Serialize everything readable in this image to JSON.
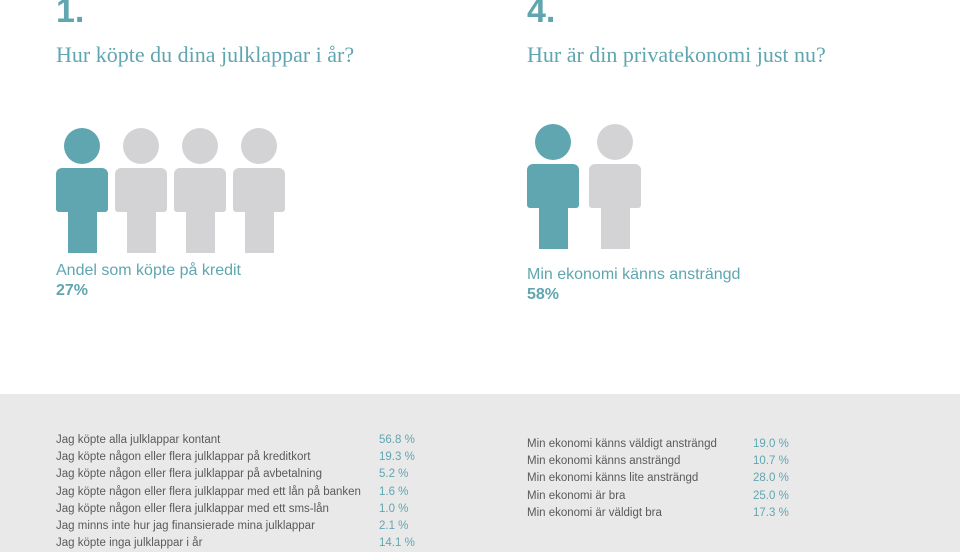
{
  "colors": {
    "accent": "#5fa6b0",
    "inactive": "#d3d3d5",
    "band": "#e9e9ea"
  },
  "left": {
    "number": "1.",
    "question": "Hur köpte du dina julklappar i år?",
    "figures": {
      "count": 4,
      "highlighted": 1
    },
    "caption": "Andel som köpte på kredit",
    "stat": "27%",
    "rows": [
      {
        "label": "Jag köpte alla julklappar kontant",
        "value": "56.8 %"
      },
      {
        "label": "Jag köpte någon eller flera julklappar på kreditkort",
        "value": "19.3 %"
      },
      {
        "label": "Jag köpte någon eller flera julklappar på avbetalning",
        "value": "5.2 %"
      },
      {
        "label": "Jag köpte någon eller flera julklappar med ett lån på banken",
        "value": "1.6 %"
      },
      {
        "label": "Jag köpte någon eller flera julklappar med ett sms-lån",
        "value": "1.0 %"
      },
      {
        "label": "Jag minns inte hur jag finansierade mina julklappar",
        "value": "2.1 %"
      },
      {
        "label": "Jag köpte inga julklappar i år",
        "value": "14.1 %"
      }
    ]
  },
  "right": {
    "number": "4.",
    "question": "Hur är din privatekonomi just nu?",
    "figures": {
      "count": 2,
      "highlighted": 1
    },
    "caption": "Min ekonomi känns ansträngd",
    "stat": "58%",
    "rows": [
      {
        "label": "Min ekonomi känns väldigt ansträngd",
        "value": "19.0 %"
      },
      {
        "label": "Min ekonomi känns ansträngd",
        "value": "10.7 %"
      },
      {
        "label": "Min ekonomi känns lite ansträngd",
        "value": "28.0 %"
      },
      {
        "label": "Min ekonomi är bra",
        "value": "25.0 %"
      },
      {
        "label": "Min ekonomi är väldigt bra",
        "value": "17.3 %"
      }
    ]
  }
}
